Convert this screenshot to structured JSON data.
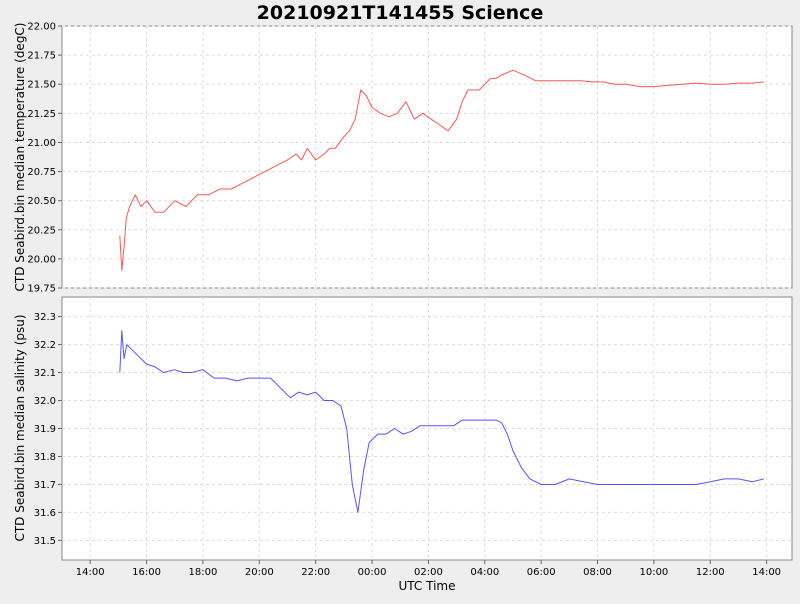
{
  "chart_data": {
    "type": "line",
    "title": "20210921T141455 Science",
    "xlabel": "UTC Time",
    "x_tick_labels": [
      "14:00",
      "16:00",
      "18:00",
      "20:00",
      "22:00",
      "00:00",
      "02:00",
      "04:00",
      "06:00",
      "08:00",
      "10:00",
      "12:00",
      "14:00"
    ],
    "x_range_hours": [
      13.0,
      38.9
    ],
    "grid": true,
    "panels": [
      {
        "ylabel": "CTD Seabird.bin median temperature (degC)",
        "ylim": [
          19.75,
          22.0
        ],
        "y_ticks": [
          "22.00",
          "21.75",
          "21.50",
          "21.25",
          "21.00",
          "20.75",
          "20.50",
          "20.25",
          "20.00",
          "19.75"
        ],
        "color": "#ff5555",
        "series": [
          {
            "x_hours": [
              15.05,
              15.12,
              15.2,
              15.28,
              15.4,
              15.6,
              15.8,
              16.0,
              16.3,
              16.6,
              17.0,
              17.4,
              17.8,
              18.2,
              18.6,
              19.0,
              19.4,
              19.8,
              20.2,
              20.6,
              21.0,
              21.3,
              21.5,
              21.7,
              22.0,
              22.3,
              22.5,
              22.7,
              23.0,
              23.2,
              23.4,
              23.6,
              23.8,
              24.0,
              24.3,
              24.6,
              24.9,
              25.2,
              25.5,
              25.8,
              26.1,
              26.4,
              26.7,
              27.0,
              27.2,
              27.4,
              27.6,
              27.8,
              28.0,
              28.2,
              28.4,
              28.6,
              28.8,
              29.0,
              29.4,
              29.8,
              30.2,
              30.6,
              31.0,
              31.4,
              31.8,
              32.2,
              32.6,
              33.0,
              33.5,
              34.0,
              34.5,
              35.0,
              35.5,
              36.0,
              36.5,
              37.0,
              37.5,
              37.9
            ],
            "y": [
              20.2,
              19.9,
              20.1,
              20.35,
              20.45,
              20.55,
              20.45,
              20.5,
              20.4,
              20.4,
              20.5,
              20.45,
              20.55,
              20.55,
              20.6,
              20.6,
              20.65,
              20.7,
              20.75,
              20.8,
              20.85,
              20.9,
              20.85,
              20.95,
              20.85,
              20.9,
              20.95,
              20.95,
              21.05,
              21.1,
              21.2,
              21.45,
              21.4,
              21.3,
              21.25,
              21.22,
              21.25,
              21.35,
              21.2,
              21.25,
              21.2,
              21.15,
              21.1,
              21.2,
              21.35,
              21.45,
              21.45,
              21.45,
              21.5,
              21.55,
              21.55,
              21.58,
              21.6,
              21.62,
              21.58,
              21.53,
              21.53,
              21.53,
              21.53,
              21.53,
              21.52,
              21.52,
              21.5,
              21.5,
              21.48,
              21.48,
              21.49,
              21.5,
              21.51,
              21.5,
              21.5,
              21.51,
              21.51,
              21.52
            ]
          }
        ]
      },
      {
        "ylabel": "CTD Seabird.bin median salinity (psu)",
        "ylim": [
          31.43,
          32.37
        ],
        "y_ticks": [
          "32.3",
          "32.2",
          "32.1",
          "32.0",
          "31.9",
          "31.8",
          "31.7",
          "31.6",
          "31.5"
        ],
        "color": "#5555ff",
        "series": [
          {
            "x_hours": [
              15.05,
              15.12,
              15.2,
              15.3,
              15.5,
              15.8,
              16.0,
              16.3,
              16.6,
              17.0,
              17.3,
              17.6,
              18.0,
              18.4,
              18.8,
              19.2,
              19.6,
              20.0,
              20.4,
              20.8,
              21.1,
              21.4,
              21.7,
              22.0,
              22.3,
              22.6,
              22.9,
              23.1,
              23.3,
              23.5,
              23.7,
              23.9,
              24.2,
              24.5,
              24.8,
              25.1,
              25.4,
              25.7,
              26.0,
              26.3,
              26.6,
              26.9,
              27.2,
              27.5,
              27.8,
              28.0,
              28.2,
              28.4,
              28.6,
              28.8,
              29.0,
              29.3,
              29.6,
              30.0,
              30.5,
              31.0,
              31.5,
              32.0,
              32.5,
              33.0,
              33.5,
              34.0,
              34.5,
              35.0,
              35.5,
              36.0,
              36.5,
              37.0,
              37.5,
              37.9
            ],
            "y": [
              32.1,
              32.25,
              32.15,
              32.2,
              32.18,
              32.15,
              32.13,
              32.12,
              32.1,
              32.11,
              32.1,
              32.1,
              32.11,
              32.08,
              32.08,
              32.07,
              32.08,
              32.08,
              32.08,
              32.04,
              32.01,
              32.03,
              32.02,
              32.03,
              32.0,
              32.0,
              31.98,
              31.9,
              31.7,
              31.6,
              31.75,
              31.85,
              31.88,
              31.88,
              31.9,
              31.88,
              31.89,
              31.91,
              31.91,
              31.91,
              31.91,
              31.91,
              31.93,
              31.93,
              31.93,
              31.93,
              31.93,
              31.93,
              31.92,
              31.88,
              31.82,
              31.76,
              31.72,
              31.7,
              31.7,
              31.72,
              31.71,
              31.7,
              31.7,
              31.7,
              31.7,
              31.7,
              31.7,
              31.7,
              31.7,
              31.71,
              31.72,
              31.72,
              31.71,
              31.72
            ]
          }
        ]
      }
    ]
  }
}
